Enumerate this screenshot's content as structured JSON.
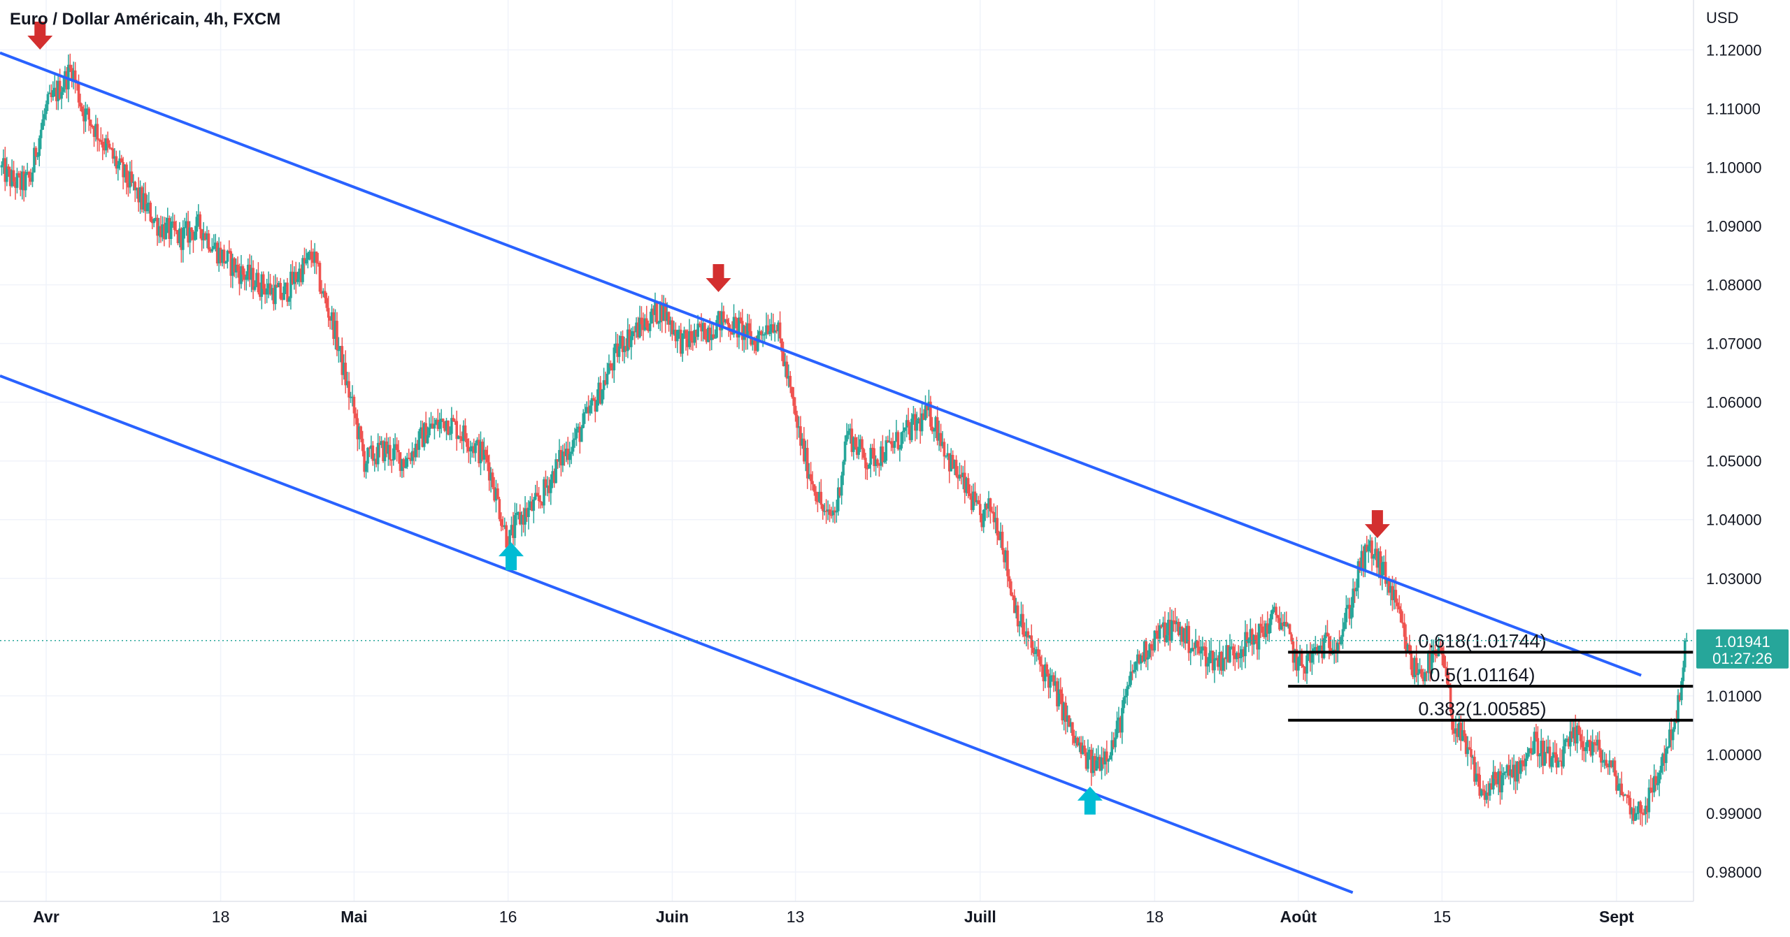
{
  "chart_data": {
    "type": "candlestick",
    "title": "Euro / Dollar Américain, 4h, FXCM",
    "currency_label": "USD",
    "ylim": [
      0.975,
      1.1285
    ],
    "y_ticks": [
      1.12,
      1.11,
      1.1,
      1.09,
      1.08,
      1.07,
      1.06,
      1.05,
      1.04,
      1.03,
      1.01,
      1.0,
      0.99,
      0.98
    ],
    "y_tick_labels": [
      "1.12000",
      "1.11000",
      "1.10000",
      "1.09000",
      "1.08000",
      "1.07000",
      "1.06000",
      "1.05000",
      "1.04000",
      "1.03000",
      "1.01000",
      "1.00000",
      "0.99000",
      "0.98000"
    ],
    "x_ticks": [
      "Avr",
      "18",
      "Mai",
      "16",
      "Juin",
      "13",
      "Juill",
      "18",
      "Août",
      "15",
      "Sept"
    ],
    "x_tick_bold": [
      true,
      false,
      true,
      false,
      true,
      false,
      true,
      false,
      true,
      false,
      true
    ],
    "x_tick_days": [
      0,
      17,
      30,
      45,
      61,
      73,
      91,
      108,
      122,
      136,
      153
    ],
    "x_lim_days": [
      -4.5,
      160.5
    ],
    "price_path": [
      [
        -4.5,
        1.1
      ],
      [
        -3.5,
        1.098
      ],
      [
        -2.5,
        1.097
      ],
      [
        -1.5,
        1.098
      ],
      [
        -1,
        1.103
      ],
      [
        0,
        1.11
      ],
      [
        1.5,
        1.114
      ],
      [
        2.5,
        1.117
      ],
      [
        3.5,
        1.11
      ],
      [
        5,
        1.106
      ],
      [
        7,
        1.1
      ],
      [
        9,
        1.095
      ],
      [
        11,
        1.09
      ],
      [
        13,
        1.088
      ],
      [
        15,
        1.09
      ],
      [
        17,
        1.085
      ],
      [
        19,
        1.082
      ],
      [
        21,
        1.08
      ],
      [
        23,
        1.078
      ],
      [
        25,
        1.083
      ],
      [
        26,
        1.085
      ],
      [
        27,
        1.078
      ],
      [
        28,
        1.073
      ],
      [
        29,
        1.065
      ],
      [
        30,
        1.058
      ],
      [
        31,
        1.05
      ],
      [
        33,
        1.052
      ],
      [
        35,
        1.05
      ],
      [
        37,
        1.055
      ],
      [
        39,
        1.057
      ],
      [
        41,
        1.054
      ],
      [
        43,
        1.05
      ],
      [
        44,
        1.043
      ],
      [
        45,
        1.036
      ],
      [
        46,
        1.04
      ],
      [
        48,
        1.043
      ],
      [
        50,
        1.05
      ],
      [
        52,
        1.055
      ],
      [
        54,
        1.062
      ],
      [
        56,
        1.07
      ],
      [
        58,
        1.073
      ],
      [
        60,
        1.076
      ],
      [
        62,
        1.07
      ],
      [
        64,
        1.072
      ],
      [
        66,
        1.074
      ],
      [
        68,
        1.072
      ],
      [
        69,
        1.07
      ],
      [
        70,
        1.073
      ],
      [
        71,
        1.074
      ],
      [
        72,
        1.066
      ],
      [
        73,
        1.057
      ],
      [
        74,
        1.05
      ],
      [
        75,
        1.045
      ],
      [
        76,
        1.04
      ],
      [
        77,
        1.042
      ],
      [
        78,
        1.055
      ],
      [
        80,
        1.05
      ],
      [
        82,
        1.052
      ],
      [
        84,
        1.055
      ],
      [
        86,
        1.058
      ],
      [
        87,
        1.055
      ],
      [
        88,
        1.05
      ],
      [
        89,
        1.047
      ],
      [
        90,
        1.044
      ],
      [
        91,
        1.04
      ],
      [
        92,
        1.042
      ],
      [
        93,
        1.038
      ],
      [
        94,
        1.028
      ],
      [
        95,
        1.022
      ],
      [
        96,
        1.018
      ],
      [
        97,
        1.015
      ],
      [
        98,
        1.012
      ],
      [
        99,
        1.008
      ],
      [
        100,
        1.003
      ],
      [
        101,
        1.0
      ],
      [
        102,
        0.998
      ],
      [
        103,
        1.0
      ],
      [
        104,
        1.002
      ],
      [
        105,
        1.008
      ],
      [
        106,
        1.015
      ],
      [
        108,
        1.02
      ],
      [
        110,
        1.022
      ],
      [
        112,
        1.018
      ],
      [
        114,
        1.016
      ],
      [
        116,
        1.018
      ],
      [
        118,
        1.02
      ],
      [
        120,
        1.024
      ],
      [
        121,
        1.02
      ],
      [
        122,
        1.015
      ],
      [
        123,
        1.016
      ],
      [
        124,
        1.018
      ],
      [
        125,
        1.019
      ],
      [
        126,
        1.02
      ],
      [
        127,
        1.025
      ],
      [
        128,
        1.032
      ],
      [
        129,
        1.035
      ],
      [
        130,
        1.032
      ],
      [
        131,
        1.028
      ],
      [
        132,
        1.022
      ],
      [
        133,
        1.015
      ],
      [
        134,
        1.014
      ],
      [
        135,
        1.016
      ],
      [
        136,
        1.017
      ],
      [
        137,
        1.006
      ],
      [
        138,
        1.002
      ],
      [
        139,
        0.998
      ],
      [
        140,
        0.993
      ],
      [
        141,
        0.995
      ],
      [
        143,
        0.997
      ],
      [
        145,
        1.002
      ],
      [
        147,
        0.998
      ],
      [
        149,
        1.003
      ],
      [
        151,
        1.001
      ],
      [
        153,
        0.996
      ],
      [
        154,
        0.992
      ],
      [
        155,
        0.99
      ],
      [
        156,
        0.992
      ],
      [
        157,
        0.996
      ],
      [
        158,
        1.002
      ],
      [
        159,
        1.008
      ],
      [
        160,
        1.019
      ]
    ],
    "channel": {
      "upper": [
        [
          -4.5,
          1.1195
        ],
        [
          155.4,
          1.0135
        ]
      ],
      "lower": [
        [
          -4.5,
          1.0645
        ],
        [
          127.3,
          0.9765
        ]
      ],
      "color": "#2962ff"
    },
    "fibonacci": [
      {
        "label": "0.618(1.01744)",
        "value": 1.01744
      },
      {
        "label": "0.5(1.01164)",
        "value": 1.01164
      },
      {
        "label": "0.382(1.00585)",
        "value": 1.00585
      }
    ],
    "fib_start_day": 121,
    "markers": [
      {
        "type": "down",
        "day": -0.6,
        "price": 1.1222
      },
      {
        "type": "down",
        "day": 65.5,
        "price": 1.0809
      },
      {
        "type": "down",
        "day": 129.7,
        "price": 1.039
      },
      {
        "type": "up",
        "day": 45.3,
        "price": 1.034
      },
      {
        "type": "up",
        "day": 101.7,
        "price": 0.9924
      }
    ],
    "current": {
      "price": 1.01941,
      "price_label": "1.01941",
      "countdown": "01:27:26"
    },
    "colors": {
      "up": "#26a69a",
      "down": "#ef5350",
      "channel": "#2962ff",
      "marker_down": "#d32f2f",
      "marker_up": "#00bcd4",
      "fib": "#000000",
      "grid": "#f0f3fa",
      "axis_text": "#131722"
    }
  }
}
